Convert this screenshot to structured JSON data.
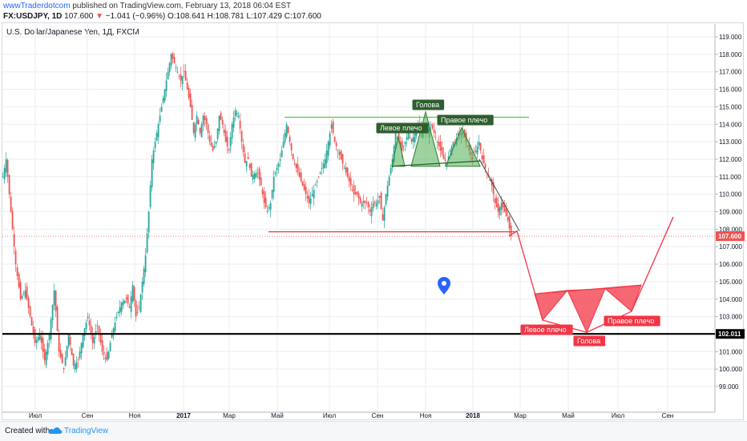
{
  "header": {
    "author": "wwwTraderdotcom",
    "published_text": "published on TradingView.com, February 13, 2018 06:04 EST",
    "symbol": "FX:USDJPY, 1D",
    "last": "107.600",
    "change": "−1.041 (−0.96%)",
    "ohlc": "O:108.641 H:108.781 L:107.429 C:107.600"
  },
  "chart_title": "U.S. Dollar/Japanese Yen, 1Д, FXCM",
  "footer": {
    "created": "Created with",
    "brand": "TradingView"
  },
  "colors": {
    "up": "#26a69a",
    "down": "#ef5350",
    "green_pattern": "#4caf50",
    "red_pattern": "#f23645",
    "hline": "#000000",
    "price_line": "#ef5350"
  },
  "chart_data": {
    "type": "candlestick",
    "ylim": [
      98.5,
      119.5
    ],
    "y_ticks": [
      "99.000",
      "100.000",
      "101.000",
      "102.000",
      "103.000",
      "104.000",
      "105.000",
      "106.000",
      "107.000",
      "108.000",
      "109.000",
      "110.000",
      "111.000",
      "112.000",
      "113.000",
      "114.000",
      "115.000",
      "116.000",
      "117.000",
      "118.000",
      "119.000"
    ],
    "x_labels": [
      "Июл",
      "Сен",
      "Ноя",
      "2017",
      "Мар",
      "Май",
      "Июл",
      "Сен",
      "Ноя",
      "2018",
      "Мар",
      "Май",
      "Июл",
      "Сен"
    ],
    "grid": true,
    "price_path": [
      [
        0,
        111
      ],
      [
        4,
        112
      ],
      [
        8,
        110
      ],
      [
        12,
        108
      ],
      [
        16,
        106
      ],
      [
        22,
        104
      ],
      [
        28,
        104.5
      ],
      [
        34,
        103
      ],
      [
        40,
        101.5
      ],
      [
        46,
        102
      ],
      [
        52,
        100.5
      ],
      [
        58,
        102
      ],
      [
        64,
        104.5
      ],
      [
        70,
        101
      ],
      [
        76,
        100
      ],
      [
        82,
        102
      ],
      [
        88,
        100.2
      ],
      [
        94,
        100.5
      ],
      [
        100,
        102
      ],
      [
        106,
        103
      ],
      [
        112,
        101.5
      ],
      [
        118,
        102.5
      ],
      [
        124,
        101
      ],
      [
        130,
        100.5
      ],
      [
        136,
        102
      ],
      [
        142,
        103
      ],
      [
        148,
        103.8
      ],
      [
        154,
        104
      ],
      [
        158,
        103.5
      ],
      [
        162,
        104.8
      ],
      [
        166,
        103
      ],
      [
        170,
        103.5
      ],
      [
        174,
        105
      ],
      [
        178,
        106.5
      ],
      [
        182,
        109
      ],
      [
        186,
        112
      ],
      [
        190,
        113
      ],
      [
        194,
        114
      ],
      [
        198,
        115
      ],
      [
        202,
        116
      ],
      [
        206,
        117
      ],
      [
        210,
        118
      ],
      [
        214,
        117.5
      ],
      [
        218,
        117
      ],
      [
        222,
        116.5
      ],
      [
        226,
        117
      ],
      [
        230,
        116
      ],
      [
        234,
        115
      ],
      [
        238,
        113.5
      ],
      [
        242,
        114.5
      ],
      [
        246,
        113.5
      ],
      [
        250,
        114.5
      ],
      [
        254,
        114
      ],
      [
        258,
        113
      ],
      [
        262,
        112.5
      ],
      [
        266,
        113
      ],
      [
        270,
        114.5
      ],
      [
        274,
        114
      ],
      [
        278,
        113
      ],
      [
        282,
        112.5
      ],
      [
        286,
        114
      ],
      [
        290,
        114.8
      ],
      [
        294,
        114.5
      ],
      [
        298,
        113
      ],
      [
        302,
        111.8
      ],
      [
        306,
        112
      ],
      [
        310,
        111
      ],
      [
        314,
        111.2
      ],
      [
        318,
        111.2
      ],
      [
        322,
        110.5
      ],
      [
        326,
        109.5
      ],
      [
        330,
        109
      ],
      [
        334,
        109.5
      ],
      [
        338,
        111
      ],
      [
        342,
        111.5
      ],
      [
        346,
        112
      ],
      [
        350,
        113
      ],
      [
        354,
        114
      ],
      [
        358,
        113
      ],
      [
        362,
        112
      ],
      [
        366,
        111.5
      ],
      [
        370,
        111
      ],
      [
        374,
        110.5
      ],
      [
        378,
        110
      ],
      [
        382,
        109.5
      ],
      [
        386,
        110
      ],
      [
        390,
        110.5
      ],
      [
        394,
        111
      ],
      [
        398,
        111.5
      ],
      [
        402,
        112
      ],
      [
        406,
        113
      ],
      [
        410,
        114
      ],
      [
        414,
        113
      ],
      [
        418,
        112.5
      ],
      [
        422,
        112
      ],
      [
        426,
        111.5
      ],
      [
        430,
        111
      ],
      [
        434,
        110.5
      ],
      [
        438,
        110
      ],
      [
        442,
        110
      ],
      [
        446,
        109.5
      ],
      [
        450,
        109.5
      ],
      [
        454,
        109.5
      ],
      [
        458,
        109
      ],
      [
        462,
        109.5
      ],
      [
        466,
        109.5
      ],
      [
        470,
        109.8
      ],
      [
        474,
        108.5
      ],
      [
        478,
        110
      ],
      [
        482,
        111
      ],
      [
        486,
        112
      ],
      [
        490,
        113.5
      ],
      [
        494,
        113
      ],
      [
        498,
        112.5
      ],
      [
        502,
        113
      ],
      [
        506,
        113.5
      ],
      [
        510,
        113
      ],
      [
        514,
        113.5
      ],
      [
        518,
        114
      ],
      [
        522,
        113.5
      ],
      [
        526,
        113.8
      ],
      [
        530,
        113.5
      ],
      [
        534,
        114
      ],
      [
        538,
        113.5
      ],
      [
        542,
        113
      ],
      [
        546,
        112.5
      ],
      [
        550,
        112
      ],
      [
        554,
        111.8
      ],
      [
        558,
        112.5
      ],
      [
        562,
        113
      ],
      [
        566,
        113.2
      ],
      [
        570,
        113.5
      ],
      [
        574,
        113.5
      ],
      [
        578,
        113
      ],
      [
        582,
        112.5
      ],
      [
        586,
        112
      ],
      [
        590,
        112.5
      ],
      [
        594,
        113
      ],
      [
        598,
        112
      ],
      [
        602,
        111.5
      ],
      [
        606,
        111
      ],
      [
        610,
        110.5
      ],
      [
        614,
        109.5
      ],
      [
        618,
        109
      ],
      [
        622,
        109.5
      ],
      [
        626,
        109
      ],
      [
        630,
        108.5
      ],
      [
        634,
        107.6
      ]
    ],
    "annotations": {
      "top_line": {
        "from": [
          355,
          114.4
        ],
        "to": [
          660,
          114.4
        ]
      },
      "neckline": {
        "from": [
          335,
          107.85
        ],
        "to": [
          645,
          107.85
        ]
      },
      "support": {
        "level": 102.011,
        "label": "102.011"
      },
      "current": {
        "level": 107.6,
        "label": "107.600"
      },
      "green_triangles": [
        [
          [
            489,
            111.6
          ],
          [
            497,
            113.3
          ],
          [
            505,
            111.6
          ]
        ],
        [
          [
            513,
            111.6
          ],
          [
            531,
            114.7
          ],
          [
            549,
            111.6
          ]
        ],
        [
          [
            556,
            111.6
          ],
          [
            576,
            113.8
          ],
          [
            599,
            111.6
          ]
        ]
      ],
      "green_neck": {
        "from": [
          489,
          111.6
        ],
        "to": [
          599,
          111.9
        ]
      },
      "red_projection": [
        [
          635,
          107.6
        ],
        [
          645,
          107.9
        ],
        [
          677,
          102.8
        ],
        [
          732,
          102.1
        ],
        [
          788,
          103.3
        ],
        [
          840,
          108.7
        ]
      ],
      "red_triangles": [
        [
          [
            667,
            104.3
          ],
          [
            677,
            102.8
          ],
          [
            708,
            104.5
          ]
        ],
        [
          [
            708,
            104.5
          ],
          [
            732,
            102.1
          ],
          [
            755,
            104.6
          ]
        ],
        [
          [
            755,
            104.6
          ],
          [
            788,
            103.3
          ],
          [
            800,
            104.8
          ]
        ]
      ],
      "trendline": {
        "from": [
          598,
          112.0
        ],
        "to": [
          648,
          107.9
        ]
      }
    },
    "labels": {
      "head_green": "Голова",
      "left_shoulder_green": "Левое плечо",
      "right_shoulder_green": "Правое плечо",
      "left_shoulder_red": "Левое плечо",
      "head_red": "Голова",
      "right_shoulder_red": "Правое плечо"
    }
  }
}
